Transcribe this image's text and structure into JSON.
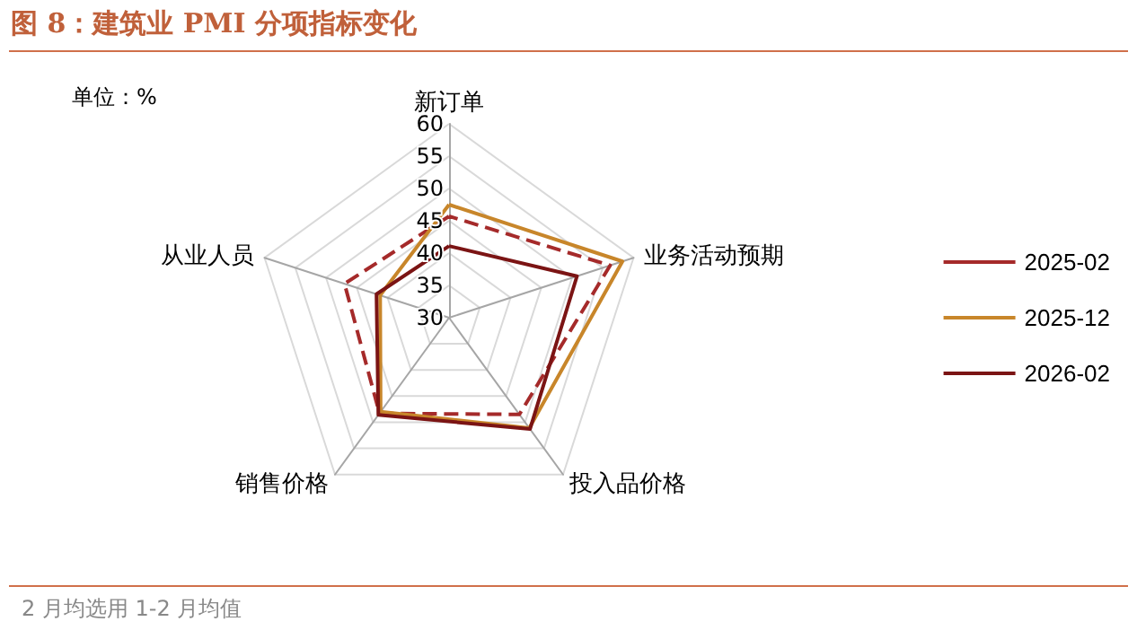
{
  "chart_data": {
    "type": "radar",
    "title": "图 8：建筑业 PMI 分项指标变化",
    "categories": [
      "新订单",
      "业务活动预期",
      "投入品价格",
      "销售价格",
      "从业人员"
    ],
    "ylim": [
      30,
      60
    ],
    "yticks": [
      30,
      35,
      40,
      45,
      50,
      55,
      60
    ],
    "grid": true,
    "legend": "right",
    "marker": "none",
    "series": [
      {
        "name": "2025-02",
        "color": "#a52a2a",
        "line_style": "dashed",
        "values": [
          45.7,
          56.2,
          48.5,
          48.3,
          47
        ]
      },
      {
        "name": "2025-12",
        "color": "#c8862a",
        "line_style": "solid",
        "values": [
          47.5,
          58.2,
          51.1,
          48.0,
          41.2
        ]
      },
      {
        "name": "2026-02",
        "color": "#7b1414",
        "line_style": "solid",
        "values": [
          41.1,
          50.8,
          51.3,
          48.6,
          41.8
        ]
      }
    ],
    "annotations": [
      "单位：%",
      "2 月均选用 1-2 月均值"
    ]
  }
}
